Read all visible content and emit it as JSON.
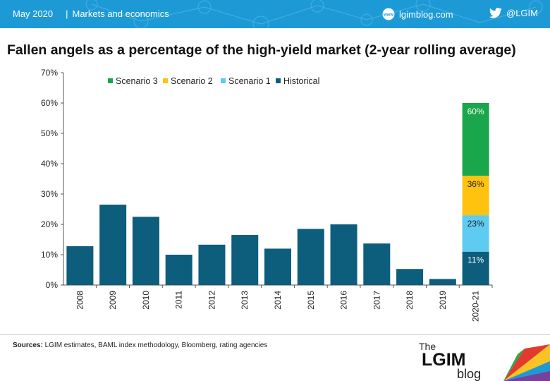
{
  "header": {
    "date": "May 2020",
    "section": "Markets and economics",
    "website": "lgimblog.com",
    "twitter": "@LGIM",
    "background_color": "#1d9ad6"
  },
  "title": "Fallen angels as a percentage of the high-yield market (2-year rolling average)",
  "footer": {
    "sources_label": "Sources:",
    "sources_text": "LGIM estimates, BAML index methodology, Bloomberg, rating agencies"
  },
  "logo": {
    "line1": "The",
    "line2": "LGIM",
    "line3": "blog"
  },
  "chart_data": {
    "type": "bar",
    "stacked_last": true,
    "categories": [
      "2008",
      "2009",
      "2010",
      "2011",
      "2012",
      "2013",
      "2014",
      "2015",
      "2016",
      "2017",
      "2018",
      "2019",
      "2020-21"
    ],
    "historical": [
      12.8,
      26.5,
      22.5,
      10.0,
      13.3,
      16.5,
      12.0,
      18.5,
      20.0,
      13.7,
      5.3,
      2.0,
      11.0
    ],
    "stack_2020_21": [
      {
        "name": "Historical",
        "top": 11,
        "label": "11%",
        "color": "#0d5d7c"
      },
      {
        "name": "Scenario 1",
        "top": 23,
        "label": "23%",
        "color": "#5ecbf0"
      },
      {
        "name": "Scenario 2",
        "top": 36,
        "label": "36%",
        "color": "#ffc20e"
      },
      {
        "name": "Scenario 3",
        "top": 60,
        "label": "60%",
        "color": "#1aa64a"
      }
    ],
    "legend": [
      {
        "name": "Scenario 3",
        "color": "#1aa64a"
      },
      {
        "name": "Scenario 2",
        "color": "#ffc20e"
      },
      {
        "name": "Scenario 1",
        "color": "#5ecbf0"
      },
      {
        "name": "Historical",
        "color": "#0d5d7c"
      }
    ],
    "legend_position": "top-left",
    "yticks": [
      "0%",
      "10%",
      "20%",
      "30%",
      "40%",
      "50%",
      "60%",
      "70%"
    ],
    "ylim": [
      0,
      70
    ],
    "grid": false,
    "bar_color": "#0d5d7c"
  }
}
